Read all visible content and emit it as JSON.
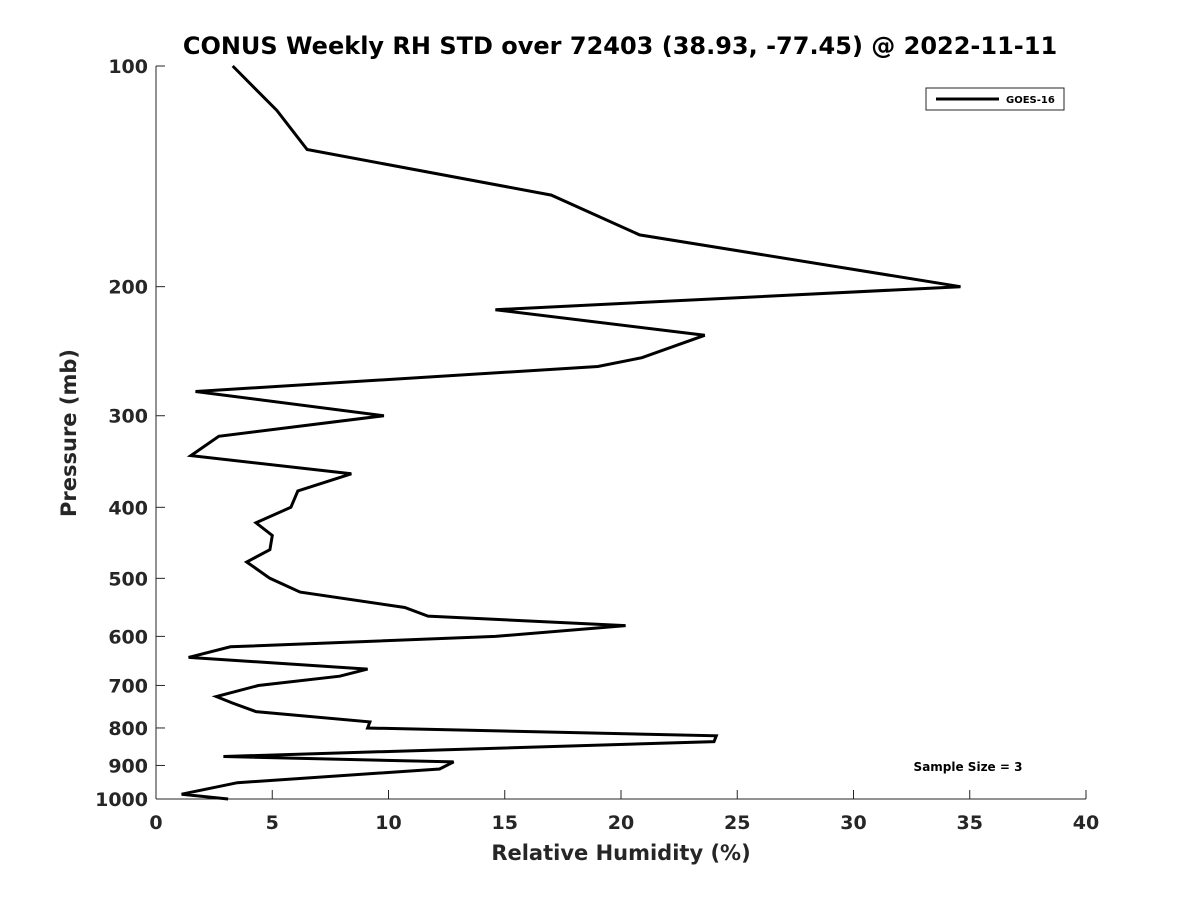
{
  "chart_data": {
    "type": "line",
    "title": "CONUS Weekly RH STD over 72403 (38.93, -77.45) @ 2022-11-11",
    "xlabel": "Relative Humidity (%)",
    "ylabel": "Pressure (mb)",
    "xlim": [
      0,
      40
    ],
    "ylim": [
      100,
      1000
    ],
    "yscale": "log",
    "yreversed": true,
    "xticks": [
      0,
      5,
      10,
      15,
      20,
      25,
      30,
      35,
      40
    ],
    "xtick_labels": [
      "0",
      "5",
      "10",
      "15",
      "20",
      "25",
      "30",
      "35",
      "40"
    ],
    "yticks": [
      100,
      200,
      300,
      400,
      500,
      600,
      700,
      800,
      900,
      1000
    ],
    "ytick_labels": [
      "100",
      "200",
      "300",
      "400",
      "500",
      "600",
      "700",
      "800",
      "900",
      "1000"
    ],
    "grid": false,
    "legend_position": "top-right",
    "annotation": "Sample Size = 3",
    "series": [
      {
        "name": "GOES-16",
        "color": "#000000",
        "x": [
          3.3,
          5.2,
          6.5,
          17.0,
          20.8,
          34.6,
          14.6,
          23.6,
          20.9,
          19.0,
          1.7,
          9.8,
          2.7,
          1.5,
          8.4,
          6.1,
          5.8,
          4.3,
          5.0,
          4.9,
          3.9,
          4.9,
          6.2,
          10.7,
          11.7,
          20.2,
          14.6,
          3.2,
          1.4,
          9.1,
          7.9,
          4.4,
          2.6,
          3.3,
          4.3,
          9.2,
          9.1,
          24.1,
          24.0,
          2.9,
          12.8,
          12.2,
          3.5,
          1.1,
          3.1
        ],
        "y": [
          100,
          115,
          130,
          150,
          170,
          200,
          215,
          233,
          250,
          257,
          278,
          300,
          320,
          340,
          360,
          380,
          400,
          420,
          437,
          457,
          475,
          500,
          522,
          548,
          563,
          580,
          600,
          620,
          641,
          665,
          680,
          700,
          725,
          740,
          760,
          785,
          800,
          820,
          835,
          875,
          890,
          910,
          950,
          985,
          1000
        ]
      }
    ]
  }
}
